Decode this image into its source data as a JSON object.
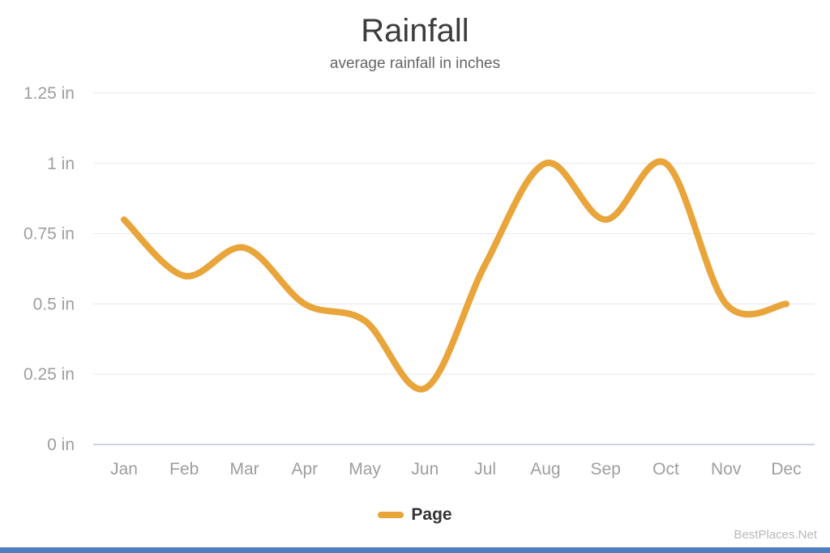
{
  "chart_data": {
    "type": "line",
    "title": "Rainfall",
    "subtitle": "average rainfall in inches",
    "categories": [
      "Jan",
      "Feb",
      "Mar",
      "Apr",
      "May",
      "Jun",
      "Jul",
      "Aug",
      "Sep",
      "Oct",
      "Nov",
      "Dec"
    ],
    "series": [
      {
        "name": "Page",
        "values": [
          0.8,
          0.6,
          0.7,
          0.5,
          0.44,
          0.2,
          0.64,
          1.0,
          0.8,
          1.0,
          0.5,
          0.5
        ],
        "color": "#E9A43A"
      }
    ],
    "ylabel": "inches",
    "ylim": [
      0,
      1.25
    ],
    "y_ticks": [
      {
        "value": 0,
        "label": "0 in"
      },
      {
        "value": 0.25,
        "label": "0.25 in"
      },
      {
        "value": 0.5,
        "label": "0.5 in"
      },
      {
        "value": 0.75,
        "label": "0.75 in"
      },
      {
        "value": 1,
        "label": "1 in"
      },
      {
        "value": 1.25,
        "label": "1.25 in"
      }
    ],
    "grid": true,
    "smooth": true,
    "legend_position": "bottom"
  },
  "watermark": "BestPlaces.Net",
  "colors": {
    "line": "#E9A43A",
    "grid": "#E8E8E8",
    "zero_axis": "#CBD2E8",
    "footer_bar": "#4F7EC0"
  }
}
